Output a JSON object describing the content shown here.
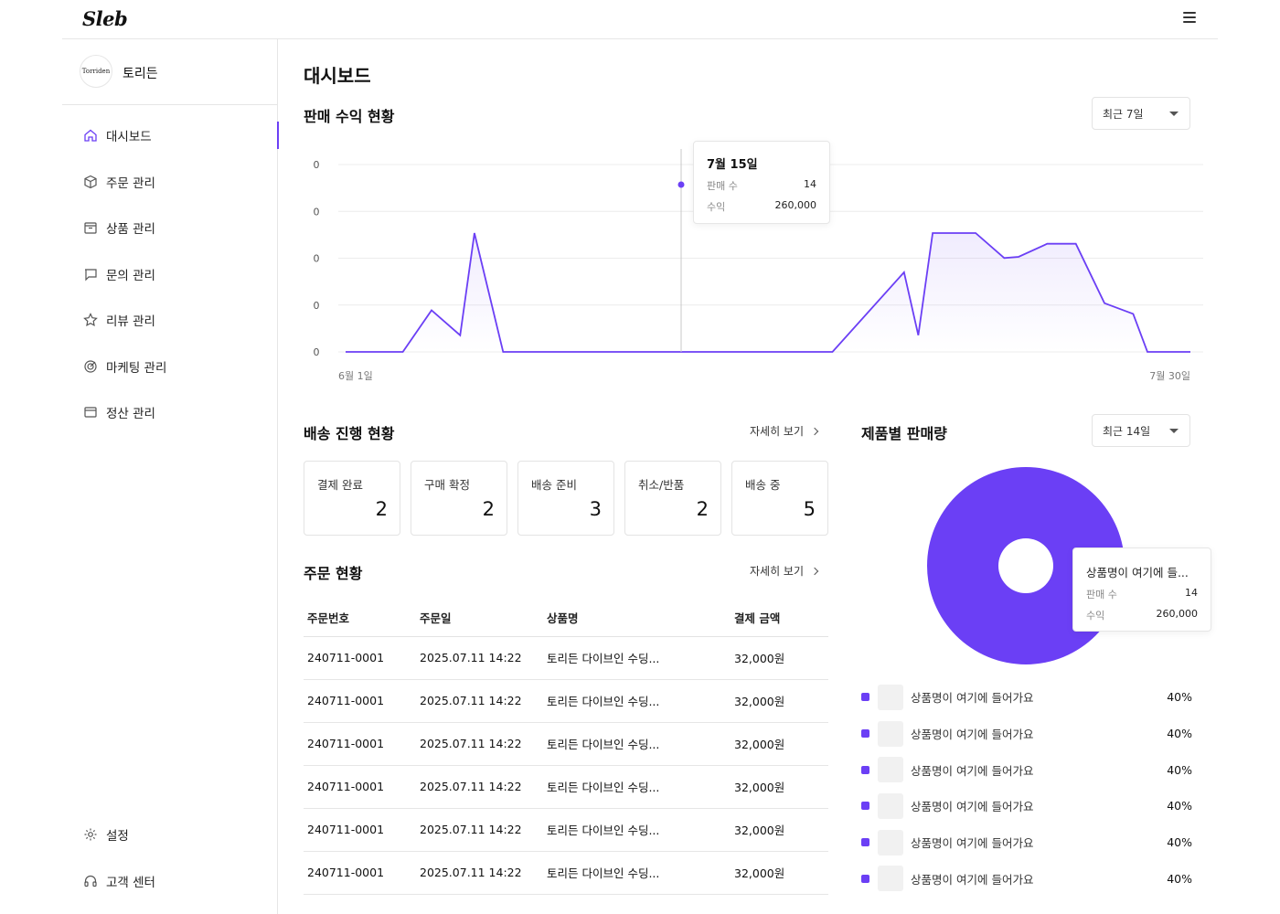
{
  "app": {
    "logo": "Sleb",
    "brand_badge": "Torriden",
    "brand_name": "토리든"
  },
  "sidebar": {
    "items": [
      {
        "label": "대시보드",
        "icon": "home-icon",
        "active": true
      },
      {
        "label": "주문 관리",
        "icon": "box-icon"
      },
      {
        "label": "상품 관리",
        "icon": "package-icon"
      },
      {
        "label": "문의 관리",
        "icon": "message-icon"
      },
      {
        "label": "리뷰 관리",
        "icon": "star-icon"
      },
      {
        "label": "마케팅 관리",
        "icon": "target-icon"
      },
      {
        "label": "정산 관리",
        "icon": "wallet-icon"
      }
    ],
    "bottom_items": [
      {
        "label": "설정",
        "icon": "gear-icon"
      },
      {
        "label": "고객 센터",
        "icon": "headset-icon"
      }
    ]
  },
  "page": {
    "title": "대시보드"
  },
  "sales": {
    "title": "판매 수익 현황",
    "period": "최근 7일",
    "tooltip": {
      "date": "7월 15일",
      "count_label": "판매 수",
      "count": "14",
      "revenue_label": "수익",
      "revenue": "260,000"
    }
  },
  "chart_data": {
    "type": "area",
    "y_ticks": [
      "0",
      "0",
      "0",
      "0",
      "0"
    ],
    "x_labels": [
      "6월 1일",
      "7월 30일"
    ],
    "x": [
      "6/1",
      "6/3",
      "6/5",
      "6/7",
      "6/9",
      "6/10",
      "6/12",
      "6/15",
      "6/20",
      "6/25",
      "6/30",
      "7/5",
      "7/10",
      "7/11",
      "7/12",
      "7/13",
      "7/15",
      "7/17",
      "7/18",
      "7/20",
      "7/22",
      "7/24",
      "7/26",
      "7/27",
      "7/30"
    ],
    "values": [
      0,
      0,
      0,
      0.35,
      0.14,
      1,
      0,
      0,
      0,
      0,
      0,
      0,
      0.67,
      0.14,
      1,
      1,
      1,
      0.79,
      0.8,
      0.91,
      0.91,
      0.41,
      0.32,
      0,
      0
    ],
    "grid": true,
    "color": "#6b3ff5"
  },
  "delivery": {
    "title": "배송 진행 현황",
    "more": "자세히 보기",
    "cards": [
      {
        "label": "결제 완료",
        "value": "2"
      },
      {
        "label": "구매 확정",
        "value": "2"
      },
      {
        "label": "배송 준비",
        "value": "3"
      },
      {
        "label": "취소/반품",
        "value": "2"
      },
      {
        "label": "배송 중",
        "value": "5"
      }
    ]
  },
  "orders": {
    "title": "주문 현황",
    "more": "자세히 보기",
    "columns": [
      "주문번호",
      "주문일",
      "상품명",
      "결제 금액"
    ],
    "rows": [
      [
        "240711-0001",
        "2025.07.11 14:22",
        "토리든 다이브인 수딩...",
        "32,000원"
      ],
      [
        "240711-0001",
        "2025.07.11 14:22",
        "토리든 다이브인 수딩...",
        "32,000원"
      ],
      [
        "240711-0001",
        "2025.07.11 14:22",
        "토리든 다이브인 수딩...",
        "32,000원"
      ],
      [
        "240711-0001",
        "2025.07.11 14:22",
        "토리든 다이브인 수딩...",
        "32,000원"
      ],
      [
        "240711-0001",
        "2025.07.11 14:22",
        "토리든 다이브인 수딩...",
        "32,000원"
      ],
      [
        "240711-0001",
        "2025.07.11 14:22",
        "토리든 다이브인 수딩...",
        "32,000원"
      ]
    ]
  },
  "products": {
    "title": "제품별 판매량",
    "period": "최근 14일",
    "tooltip": {
      "name": "상품명이 여기에 들...",
      "count_label": "판매 수",
      "count": "14",
      "revenue_label": "수익",
      "revenue": "260,000"
    },
    "legend": [
      {
        "name": "상품명이 여기에 들어가요",
        "pct": "40%",
        "color": "#6b3ff5"
      },
      {
        "name": "상품명이 여기에 들어가요",
        "pct": "40%",
        "color": "#6b3ff5"
      },
      {
        "name": "상품명이 여기에 들어가요",
        "pct": "40%",
        "color": "#6b3ff5"
      },
      {
        "name": "상품명이 여기에 들어가요",
        "pct": "40%",
        "color": "#6b3ff5"
      },
      {
        "name": "상품명이 여기에 들어가요",
        "pct": "40%",
        "color": "#6b3ff5"
      },
      {
        "name": "상품명이 여기에 들어가요",
        "pct": "40%",
        "color": "#6b3ff5"
      }
    ],
    "donut_color": "#6b3ff5"
  }
}
